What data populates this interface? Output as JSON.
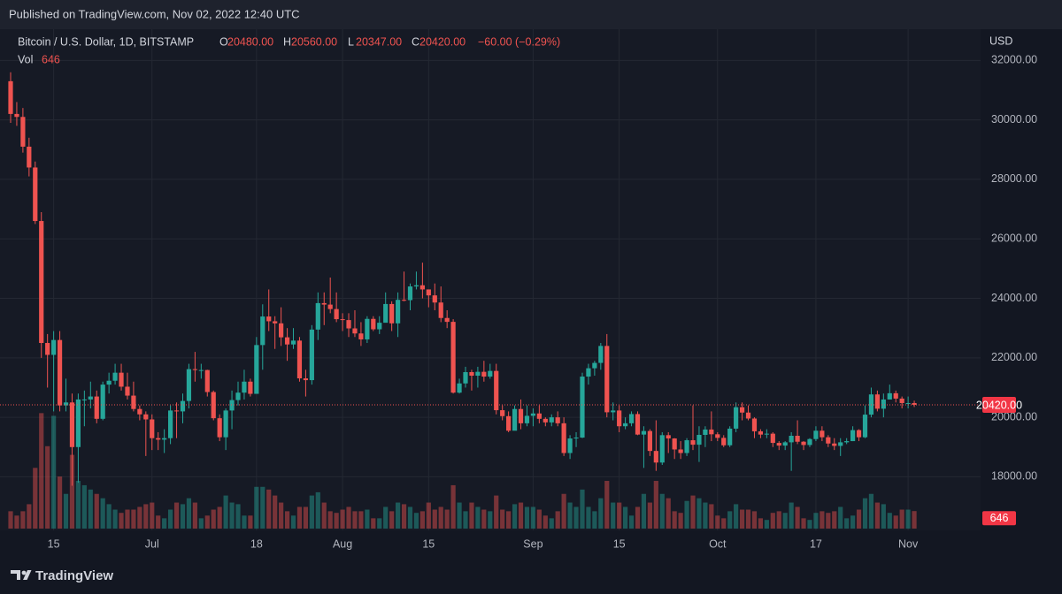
{
  "published": "Published on TradingView.com, Nov 02, 2022 12:40 UTC",
  "brand": "TradingView",
  "chart_data": {
    "type": "candlestick",
    "title": "Bitcoin / U.S. Dollar, 1D, BITSTAMP",
    "ohlc_letters": [
      "O",
      "H",
      "L",
      "C"
    ],
    "ohlc_values": [
      "20480.00",
      "20560.00",
      "20347.00",
      "20420.00"
    ],
    "change": "−60.00 (−0.29%)",
    "volume_title": "Vol",
    "currency": "USD",
    "last_price_label": "20420.00",
    "up_color": "#26a69a",
    "down_color": "#ef5350",
    "grid": true,
    "ylim": [
      16200,
      33050
    ],
    "yticks": [
      {
        "value": 18000,
        "label": "18000.00"
      },
      {
        "value": 20000,
        "label": "20000.00"
      },
      {
        "value": 22000,
        "label": "22000.00"
      },
      {
        "value": 24000,
        "label": "24000.00"
      },
      {
        "value": 26000,
        "label": "26000.00"
      },
      {
        "value": 28000,
        "label": "28000.00"
      },
      {
        "value": 30000,
        "label": "30000.00"
      },
      {
        "value": 32000,
        "label": "32000.00"
      }
    ],
    "vlim": [
      0,
      4500
    ],
    "categories": [
      null,
      null,
      null,
      null,
      null,
      null,
      null,
      "15",
      null,
      null,
      null,
      null,
      null,
      null,
      null,
      null,
      null,
      null,
      null,
      null,
      null,
      null,
      null,
      "Jul",
      null,
      null,
      null,
      null,
      null,
      null,
      null,
      null,
      null,
      null,
      null,
      null,
      null,
      null,
      null,
      null,
      "18",
      null,
      null,
      null,
      null,
      null,
      null,
      null,
      null,
      null,
      null,
      null,
      null,
      null,
      "Aug",
      null,
      null,
      null,
      null,
      null,
      null,
      null,
      null,
      null,
      null,
      null,
      null,
      null,
      "15",
      null,
      null,
      null,
      null,
      null,
      null,
      null,
      null,
      null,
      null,
      null,
      null,
      null,
      null,
      null,
      null,
      "Sep",
      null,
      null,
      null,
      null,
      null,
      null,
      null,
      null,
      null,
      null,
      null,
      null,
      null,
      "15",
      null,
      null,
      null,
      null,
      null,
      null,
      null,
      null,
      null,
      null,
      null,
      null,
      null,
      null,
      null,
      "Oct",
      null,
      null,
      null,
      null,
      null,
      null,
      null,
      null,
      null,
      null,
      null,
      null,
      null,
      null,
      null,
      "17",
      null,
      null,
      null,
      null,
      null,
      null,
      null,
      null,
      null,
      null,
      null,
      null,
      null,
      null,
      "Nov",
      null
    ],
    "open": [
      31300,
      30200,
      30100,
      29100,
      28400,
      26600,
      22500,
      22100,
      22600,
      20400,
      20500,
      19000,
      20600,
      20600,
      20700,
      19950,
      21100,
      21230,
      21500,
      21030,
      20730,
      20280,
      20100,
      19930,
      19300,
      19250,
      19300,
      20230,
      20200,
      20550,
      21620,
      21590,
      21590,
      20850,
      19970,
      19330,
      20230,
      20580,
      20830,
      21200,
      20790,
      22430,
      23390,
      23230,
      23160,
      22690,
      22450,
      22580,
      21310,
      21250,
      22950,
      23840,
      23790,
      23640,
      23300,
      23270,
      22990,
      22820,
      22620,
      23310,
      22960,
      23180,
      23810,
      23160,
      23950,
      23940,
      24400,
      24440,
      24300,
      24100,
      23860,
      23340,
      23210,
      20830,
      21140,
      21520,
      21400,
      21530,
      21370,
      21560,
      20240,
      20040,
      19550,
      20280,
      19800,
      20050,
      20130,
      19950,
      19830,
      20000,
      19800,
      18800,
      19290,
      19320,
      21370,
      21650,
      21830,
      22400,
      20170,
      20230,
      19700,
      19800,
      20110,
      19420,
      19540,
      18870,
      18480,
      19400,
      19290,
      18920,
      18800,
      19230,
      19080,
      19410,
      19590,
      19430,
      19310,
      19060,
      19620,
      20340,
      20160,
      19960,
      19530,
      19420,
      19450,
      19140,
      19050,
      19160,
      19380,
      19180,
      19070,
      19270,
      19550,
      19330,
      19120,
      19040,
      19160,
      19200,
      19570,
      19330,
      20090,
      20770,
      20290,
      20600,
      20810,
      20630,
      20480,
      20480
    ],
    "high": [
      31600,
      30600,
      30400,
      29400,
      28600,
      26900,
      22800,
      22900,
      22900,
      21300,
      20800,
      20800,
      20900,
      21200,
      20900,
      21200,
      21500,
      21800,
      21800,
      21500,
      21200,
      20400,
      20200,
      20100,
      19500,
      19600,
      20400,
      20500,
      20800,
      21800,
      22200,
      21800,
      21600,
      20900,
      20100,
      20300,
      20900,
      21200,
      21600,
      21300,
      22700,
      23800,
      24300,
      23400,
      23700,
      23000,
      23000,
      22700,
      21600,
      23100,
      24200,
      24200,
      24700,
      24200,
      23500,
      23500,
      23600,
      23200,
      23400,
      23400,
      23400,
      24200,
      23900,
      24200,
      24900,
      24500,
      24900,
      25200,
      24300,
      24500,
      24400,
      23600,
      23300,
      21300,
      21700,
      21600,
      21700,
      21900,
      21800,
      21800,
      20400,
      20200,
      20400,
      20600,
      20400,
      20300,
      20400,
      20000,
      20100,
      20200,
      20000,
      19400,
      19500,
      21500,
      21800,
      21900,
      22500,
      22800,
      20500,
      20400,
      20000,
      20200,
      20200,
      19700,
      19600,
      19900,
      19500,
      19500,
      19300,
      19200,
      19300,
      20400,
      19700,
      19700,
      20200,
      19500,
      19400,
      19700,
      20500,
      20500,
      20400,
      20000,
      19600,
      19600,
      19500,
      19200,
      19200,
      19500,
      19900,
      19200,
      19300,
      19700,
      19700,
      19400,
      19300,
      19300,
      19300,
      19700,
      19600,
      20400,
      21000,
      20900,
      20800,
      21100,
      20900,
      20700,
      20700,
      20560
    ],
    "low": [
      29900,
      29800,
      28900,
      28100,
      26500,
      22000,
      21000,
      20200,
      20200,
      20200,
      17700,
      17800,
      19700,
      20300,
      19800,
      19900,
      20800,
      21100,
      20900,
      20600,
      20200,
      19900,
      18700,
      18900,
      18900,
      18800,
      19100,
      19300,
      19800,
      20300,
      21200,
      21300,
      20700,
      19900,
      19200,
      18900,
      19600,
      20400,
      20600,
      20700,
      20800,
      21600,
      22900,
      22300,
      22400,
      21900,
      22300,
      21200,
      20700,
      21100,
      22600,
      23100,
      23500,
      23200,
      22900,
      22700,
      22700,
      22400,
      22500,
      22900,
      22800,
      23200,
      22900,
      22700,
      23900,
      23600,
      24300,
      24000,
      23700,
      23600,
      23200,
      23000,
      20800,
      20800,
      21000,
      20900,
      21000,
      21200,
      21300,
      20100,
      19900,
      19500,
      19600,
      19600,
      19700,
      19700,
      19800,
      19700,
      19700,
      19700,
      18700,
      18600,
      19000,
      19300,
      21100,
      21400,
      21600,
      20000,
      19900,
      19500,
      19600,
      19700,
      19400,
      18300,
      18700,
      18200,
      18400,
      18800,
      18600,
      18600,
      18700,
      18900,
      18500,
      19000,
      19200,
      19200,
      19000,
      19000,
      19500,
      19900,
      19900,
      19300,
      19300,
      19300,
      19000,
      18900,
      18900,
      18200,
      19100,
      18900,
      19000,
      19200,
      19200,
      19000,
      18900,
      18700,
      19100,
      19200,
      19200,
      19300,
      20000,
      20200,
      20000,
      20600,
      20500,
      20300,
      20300,
      20347
    ],
    "close": [
      30200,
      30100,
      29100,
      28400,
      26600,
      22500,
      22100,
      22600,
      20400,
      20500,
      19000,
      20600,
      20600,
      20700,
      19950,
      21100,
      21230,
      21500,
      21030,
      20730,
      20280,
      20100,
      19930,
      19300,
      19250,
      19300,
      20230,
      20200,
      20550,
      21620,
      21590,
      21590,
      20850,
      19970,
      19330,
      20230,
      20580,
      20830,
      21200,
      20790,
      22430,
      23390,
      23230,
      23160,
      22690,
      22450,
      22580,
      21310,
      21250,
      22950,
      23840,
      23790,
      23640,
      23300,
      23270,
      22990,
      22820,
      22620,
      23310,
      22960,
      23180,
      23810,
      23160,
      23950,
      23940,
      24400,
      24440,
      24300,
      24100,
      23860,
      23340,
      23210,
      20830,
      21140,
      21520,
      21400,
      21530,
      21370,
      21560,
      20240,
      20040,
      19550,
      20280,
      19800,
      20050,
      20130,
      19950,
      19830,
      20000,
      19800,
      18800,
      19290,
      19320,
      21370,
      21650,
      21830,
      22400,
      20170,
      20230,
      19700,
      19800,
      20110,
      19420,
      19540,
      18870,
      18480,
      19400,
      19290,
      18920,
      18800,
      19230,
      19080,
      19410,
      19590,
      19430,
      19310,
      19060,
      19620,
      20340,
      20160,
      19960,
      19530,
      19420,
      19450,
      19140,
      19050,
      19160,
      19380,
      19180,
      19070,
      19270,
      19550,
      19330,
      19120,
      19040,
      19160,
      19200,
      19570,
      19330,
      20090,
      20770,
      20290,
      20600,
      20810,
      20630,
      20480,
      20480,
      20420
    ],
    "volume": [
      640,
      480,
      640,
      900,
      2240,
      4260,
      3040,
      4160,
      1920,
      1280,
      2720,
      1760,
      1600,
      1440,
      1280,
      1120,
      900,
      700,
      580,
      700,
      700,
      800,
      900,
      960,
      480,
      380,
      700,
      960,
      900,
      1120,
      960,
      380,
      480,
      700,
      800,
      1220,
      960,
      900,
      480,
      480,
      1540,
      1540,
      1440,
      1220,
      960,
      640,
      480,
      800,
      800,
      1220,
      1340,
      960,
      640,
      580,
      700,
      800,
      640,
      640,
      700,
      380,
      380,
      800,
      640,
      960,
      900,
      800,
      580,
      640,
      960,
      700,
      800,
      700,
      1600,
      960,
      640,
      960,
      800,
      700,
      640,
      1220,
      700,
      640,
      900,
      960,
      800,
      800,
      700,
      480,
      380,
      640,
      1280,
      960,
      800,
      1440,
      800,
      640,
      1120,
      1760,
      960,
      960,
      800,
      480,
      800,
      1280,
      960,
      1760,
      1280,
      1120,
      640,
      580,
      1020,
      1220,
      1120,
      960,
      900,
      480,
      380,
      640,
      900,
      700,
      700,
      640,
      380,
      320,
      580,
      640,
      580,
      960,
      800,
      380,
      320,
      580,
      640,
      580,
      640,
      800,
      380,
      480,
      700,
      1120,
      1280,
      960,
      900,
      580,
      480,
      700,
      700,
      646
    ]
  }
}
